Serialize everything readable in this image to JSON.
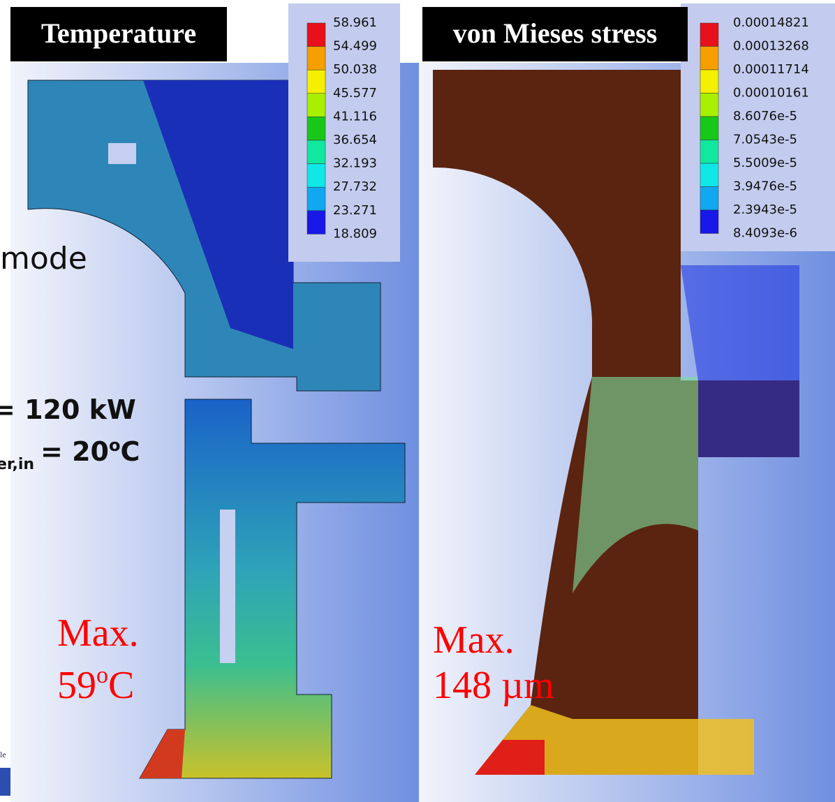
{
  "background": {
    "mode_text": "mode",
    "power_text": "= 120 kW",
    "temp_sub": "er,in",
    "temp_text": "= 20",
    "temp_sup": "o",
    "temp_unit": "C",
    "footer_fragment": "le"
  },
  "panels": [
    {
      "title": "Temperature",
      "legend": [
        "58.961",
        "54.499",
        "50.038",
        "45.577",
        "41.116",
        "36.654",
        "32.193",
        "27.732",
        "23.271",
        "18.809"
      ],
      "note": {
        "line1": "Max.",
        "line2": "59",
        "sup": "o",
        "unit": "C"
      }
    },
    {
      "title": "von Mieses stress",
      "legend": [
        "0.00014821",
        "0.00013268",
        "0.00011714",
        "0.00010161",
        "8.6076e-5",
        "7.0543e-5",
        "5.5009e-5",
        "3.9476e-5",
        "2.3943e-5",
        "8.4093e-6"
      ],
      "note": {
        "line1": "Max.",
        "line2": "148 µm"
      }
    }
  ]
}
